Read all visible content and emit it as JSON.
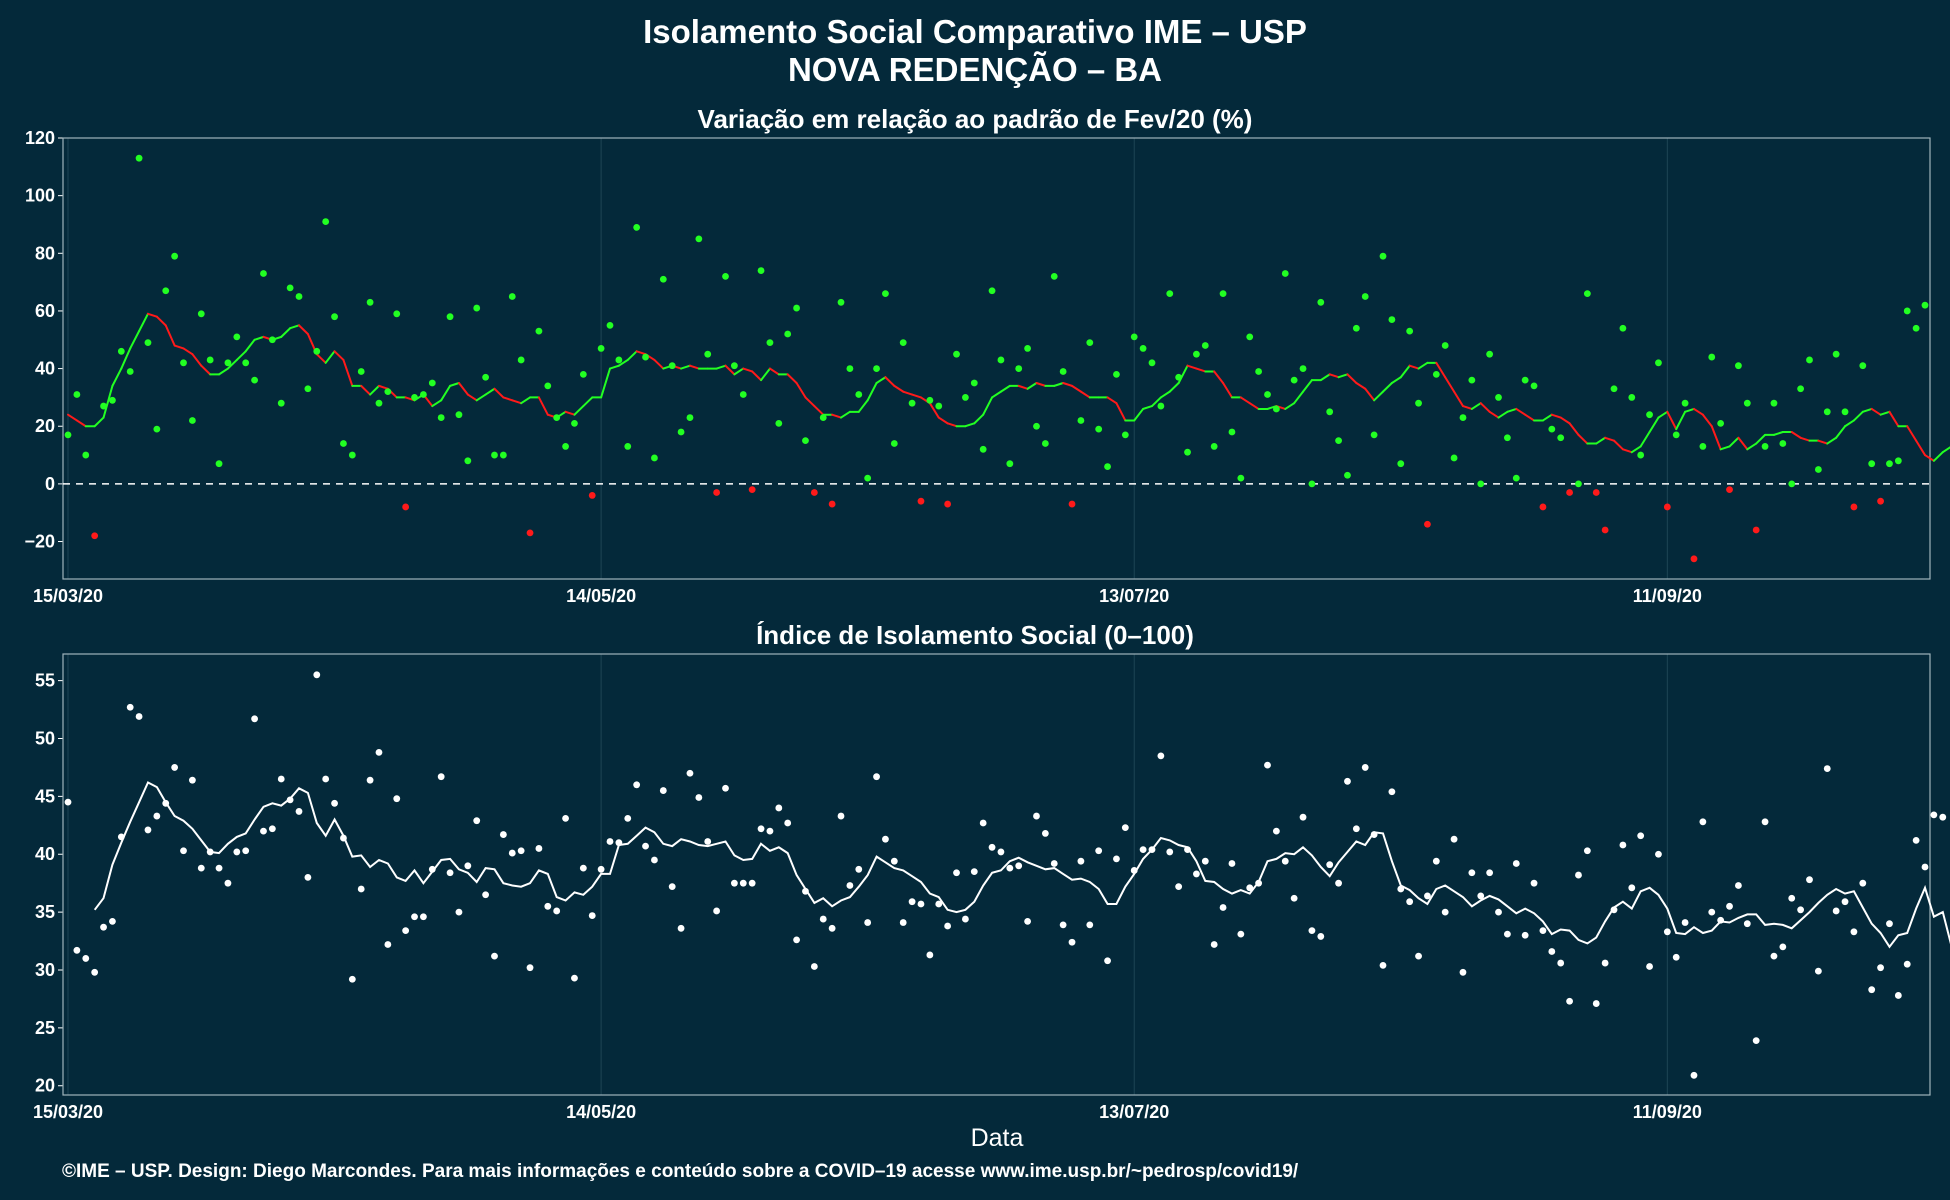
{
  "page": {
    "title_line1": "Isolamento Social Comparativo IME – USP",
    "title_line2": "NOVA REDENÇÃO – BA",
    "xlabel": "Data",
    "footer": "©IME – USP. Design: Diego Marcondes. Para mais informações e conteúdo sobre a COVID–19 acesse www.ime.usp.br/~pedrosp/covid19/"
  },
  "colors": {
    "background": "#04293a",
    "panel_border": "#9fb3bb",
    "grid": "#1e4555",
    "increase": "#22ff22",
    "decrease": "#ff1a1a",
    "index": "#ffffff"
  },
  "chart_data": [
    {
      "type": "scatter",
      "title": "Variação em relação ao padrão de Fev/20 (%)",
      "x_start": "15/03/20",
      "x_end": "16/10/20",
      "xticks": [
        "15/03/20",
        "14/05/20",
        "13/07/20",
        "11/09/20"
      ],
      "xtick_days": [
        0,
        60,
        120,
        180
      ],
      "ylim": [
        -33,
        120
      ],
      "yticks": [
        -20,
        0,
        20,
        40,
        60,
        80,
        100,
        120
      ],
      "ytick_labels": [
        "−20",
        "0",
        "20",
        "40",
        "60",
        "80",
        "100",
        "120"
      ],
      "reference_line": 0,
      "grid": true,
      "series": [
        {
          "kind": "daily_points",
          "values": [
            17,
            31,
            10,
            -18,
            27,
            29,
            46,
            39,
            113,
            49,
            19,
            67,
            79,
            42,
            22,
            59,
            43,
            7,
            42,
            51,
            42,
            36,
            73,
            50,
            28,
            68,
            65,
            33,
            46,
            91,
            58,
            14,
            10,
            39,
            63,
            28,
            32,
            59,
            -8,
            30,
            31,
            35,
            23,
            58,
            24,
            8,
            61,
            37,
            10,
            10,
            65,
            43,
            -17,
            53,
            34,
            23,
            13,
            21,
            38,
            -4,
            47,
            55,
            43,
            13,
            89,
            44,
            9,
            71,
            41,
            18,
            23,
            85,
            45,
            -3,
            72,
            41,
            31,
            -2,
            74,
            49,
            21,
            52,
            61,
            15,
            -3,
            23,
            -7,
            63,
            40,
            31,
            2,
            40,
            66,
            14,
            49,
            28,
            -6,
            29,
            27,
            -7,
            45,
            30,
            35,
            12,
            67,
            43,
            7,
            40,
            47,
            20,
            14,
            72,
            39,
            -7,
            22,
            49,
            19,
            6,
            38,
            17,
            51,
            47,
            42,
            27,
            66,
            37,
            11,
            45,
            48,
            13,
            66,
            18,
            2,
            51,
            39,
            31,
            26,
            73,
            36,
            40,
            0,
            63,
            25,
            15,
            3,
            54,
            65,
            17,
            79,
            57,
            7,
            53,
            28,
            -14,
            38,
            48,
            9,
            23,
            36,
            0,
            45,
            30,
            16,
            2,
            36,
            34,
            -8,
            19,
            16,
            -3,
            0,
            66,
            -3,
            -16,
            33,
            54,
            30,
            10,
            24,
            42,
            -8,
            17,
            28,
            -26,
            13,
            44,
            21,
            -2,
            41,
            28,
            -16,
            13,
            28,
            14,
            0,
            33,
            43,
            5,
            25,
            45,
            25,
            -8,
            41,
            7,
            -6,
            7,
            8,
            60,
            54,
            62
          ]
        },
        {
          "kind": "moving_average",
          "start_index": 0,
          "values": [
            24,
            22,
            20,
            20,
            23,
            34,
            40,
            47,
            53,
            59,
            58,
            55,
            48,
            47,
            45,
            41,
            38,
            38,
            40,
            43,
            46,
            50,
            51,
            50,
            51,
            54,
            55,
            52,
            45,
            42,
            46,
            43,
            34,
            34,
            31,
            34,
            33,
            30,
            30,
            29,
            31,
            27,
            29,
            34,
            35,
            31,
            29,
            31,
            33,
            30,
            29,
            28,
            30,
            30,
            24,
            23,
            25,
            24,
            27,
            30,
            30,
            40,
            41,
            43,
            46,
            45,
            43,
            40,
            41,
            40,
            41,
            40,
            40,
            40,
            41,
            38,
            40,
            39,
            36,
            40,
            38,
            38,
            35,
            30,
            27,
            24,
            24,
            23,
            25,
            25,
            29,
            35,
            37,
            34,
            32,
            31,
            30,
            28,
            23,
            21,
            20,
            20,
            21,
            24,
            30,
            32,
            34,
            34,
            33,
            35,
            34,
            34,
            35,
            34,
            32,
            30,
            30,
            30,
            28,
            22,
            22,
            26,
            27,
            30,
            32,
            35,
            41,
            40,
            39,
            39,
            35,
            30,
            30,
            28,
            26,
            26,
            27,
            26,
            28,
            32,
            36,
            36,
            38,
            37,
            38,
            35,
            33,
            29,
            32,
            35,
            37,
            41,
            40,
            42,
            42,
            37,
            32,
            27,
            26,
            28,
            25,
            23,
            25,
            26,
            24,
            22,
            22,
            24,
            23,
            21,
            17,
            14,
            14,
            16,
            15,
            12,
            11,
            13,
            18,
            23,
            25,
            19,
            25,
            26,
            24,
            20,
            12,
            13,
            16,
            12,
            14,
            17,
            17,
            18,
            18,
            16,
            15,
            15,
            14,
            16,
            20,
            22,
            25,
            26,
            24,
            25,
            20,
            20,
            15,
            10,
            8,
            11,
            13,
            20,
            27
          ]
        }
      ]
    },
    {
      "type": "scatter",
      "title": "Índice de Isolamento Social (0–100)",
      "x_start": "15/03/20",
      "x_end": "16/10/20",
      "xticks": [
        "15/03/20",
        "14/05/20",
        "13/07/20",
        "11/09/20"
      ],
      "xtick_days": [
        0,
        60,
        120,
        180
      ],
      "ylim": [
        19.2,
        57.3
      ],
      "yticks": [
        20,
        25,
        30,
        35,
        40,
        45,
        50,
        55
      ],
      "ytick_labels": [
        "20",
        "25",
        "30",
        "35",
        "40",
        "45",
        "50",
        "55"
      ],
      "grid": true,
      "series": [
        {
          "kind": "daily_points",
          "values": [
            44.5,
            31.7,
            31,
            29.8,
            33.7,
            34.2,
            41.5,
            52.7,
            51.9,
            42.1,
            43.3,
            44.4,
            47.5,
            40.3,
            46.4,
            38.8,
            40.2,
            38.8,
            37.5,
            40.2,
            40.3,
            51.7,
            42,
            42.2,
            46.5,
            44.7,
            43.7,
            38,
            55.5,
            46.5,
            44.4,
            41.4,
            29.2,
            37,
            46.4,
            48.8,
            32.2,
            44.8,
            33.4,
            34.6,
            34.6,
            38.7,
            46.7,
            38.4,
            35,
            39,
            42.9,
            36.5,
            31.2,
            41.7,
            40.1,
            40.3,
            30.2,
            40.5,
            35.5,
            35.1,
            43.1,
            29.3,
            38.8,
            34.7,
            38.7,
            41.1,
            41,
            43.1,
            46,
            40.7,
            39.5,
            45.5,
            37.2,
            33.6,
            47,
            44.9,
            41.1,
            35.1,
            45.7,
            37.5,
            37.5,
            37.5,
            42.2,
            42,
            44,
            42.7,
            32.6,
            36.8,
            30.3,
            34.4,
            33.6,
            43.3,
            37.3,
            38.7,
            34.1,
            46.7,
            41.3,
            39.4,
            34.1,
            35.9,
            35.7,
            31.3,
            35.7,
            33.8,
            38.4,
            34.4,
            38.5,
            42.7,
            40.6,
            40.2,
            38.8,
            39,
            34.2,
            43.3,
            41.8,
            39.2,
            33.9,
            32.4,
            39.4,
            33.9,
            40.3,
            30.8,
            39.6,
            42.3,
            38.6,
            40.4,
            40.4,
            48.5,
            40.2,
            37.2,
            40.4,
            38.3,
            39.4,
            32.2,
            35.4,
            39.2,
            33.1,
            37.1,
            37.5,
            47.7,
            42,
            39.4,
            36.2,
            43.2,
            33.4,
            32.9,
            39.1,
            37.5,
            46.3,
            42.2,
            47.5,
            41.7,
            30.4,
            45.4,
            37,
            35.9,
            31.2,
            36.4,
            39.4,
            35,
            41.3,
            29.8,
            38.4,
            36.4,
            38.4,
            35,
            33.1,
            39.2,
            33,
            37.5,
            33.4,
            31.6,
            30.6,
            27.3,
            38.2,
            40.3,
            27.1,
            30.6,
            35.2,
            40.8,
            37.1,
            41.6,
            30.3,
            40,
            33.3,
            31.1,
            34.1,
            20.9,
            42.8,
            35,
            34.3,
            35.5,
            37.3,
            34,
            23.9,
            42.8,
            31.2,
            32,
            36.2,
            35.2,
            37.8,
            29.9,
            47.4,
            35.1,
            35.9,
            33.3,
            37.5,
            28.3,
            30.2,
            34,
            27.8,
            30.5,
            41.2,
            38.9,
            43.4,
            43.2
          ]
        },
        {
          "kind": "moving_average",
          "start_index": 3,
          "values": [
            35.2,
            36.2,
            39.1,
            41,
            42.8,
            44.5,
            46.2,
            45.8,
            44.5,
            43.3,
            42.9,
            42.2,
            41.2,
            40.2,
            40.1,
            40.9,
            41.5,
            41.8,
            43,
            44.1,
            44.4,
            44.2,
            44.8,
            45.7,
            45.3,
            42.7,
            41.6,
            43,
            41.6,
            39.8,
            39.9,
            38.9,
            39.5,
            39.2,
            38,
            37.7,
            38.6,
            37.5,
            38.5,
            39.5,
            39.6,
            38.7,
            38.4,
            37.6,
            38.8,
            38.7,
            37.5,
            37.3,
            37.2,
            37.5,
            38.6,
            38.3,
            36.3,
            36,
            36.7,
            36.5,
            37.2,
            38.3,
            38.3,
            40.8,
            40.9,
            41.6,
            42.3,
            41.9,
            40.9,
            40.7,
            41.3,
            41.1,
            40.8,
            40.7,
            40.9,
            41.1,
            39.9,
            39.5,
            39.6,
            40.9,
            40.3,
            40.6,
            40.1,
            38.2,
            37,
            35.8,
            36.2,
            35.5,
            36,
            36.3,
            37.2,
            38.2,
            39.8,
            39.3,
            38.8,
            38.6,
            38.1,
            37.6,
            36.6,
            36.3,
            35.2,
            35,
            35.2,
            35.9,
            37.3,
            38.4,
            38.6,
            39.4,
            39.7,
            39.3,
            39,
            38.7,
            38.8,
            38.3,
            37.8,
            37.9,
            37.6,
            37,
            35.7,
            35.7,
            37.2,
            38.3,
            39.6,
            40.4,
            41.4,
            41.2,
            40.8,
            40.6,
            39.4,
            37.7,
            37.6,
            37,
            36.6,
            36.9,
            36.6,
            37.6,
            39.4,
            39.6,
            40.1,
            40,
            40.6,
            39.9,
            38.9,
            38.1,
            39.3,
            40.2,
            41.1,
            40.8,
            41.9,
            41.8,
            39.4,
            37.3,
            36.9,
            36.2,
            35.7,
            37,
            37.3,
            36.8,
            36.3,
            35.5,
            36,
            36.4,
            36.1,
            35.5,
            34.9,
            35.3,
            34.9,
            34.2,
            33.1,
            33.5,
            33.4,
            32.6,
            32.3,
            32.8,
            34.2,
            35.4,
            35.9,
            35.3,
            36.8,
            37.1,
            36.5,
            35.3,
            33.2,
            33.1,
            33.7,
            33.2,
            33.4,
            34.2,
            34.1,
            34.5,
            34.8,
            34.8,
            33.9,
            34,
            33.9,
            33.6,
            34.3,
            35,
            35.8,
            36.5,
            37,
            36.6,
            36.8,
            35.4,
            34,
            33.2,
            32,
            33,
            33.2,
            35.3,
            37.1,
            34.6,
            35,
            32
          ]
        }
      ]
    }
  ]
}
